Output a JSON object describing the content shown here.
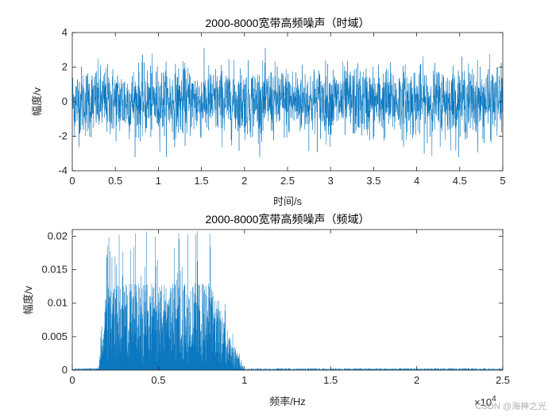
{
  "watermark": "CSDN @海神之光",
  "chart_data": [
    {
      "type": "line",
      "title": "2000-8000宽带高频噪声（时域）",
      "xlabel": "时间/s",
      "ylabel": "幅度/v",
      "xlim": [
        0,
        5
      ],
      "ylim": [
        -4,
        4
      ],
      "xticks": [
        0,
        0.5,
        1,
        1.5,
        2,
        2.5,
        3,
        3.5,
        4,
        4.5,
        5
      ],
      "xtick_labels": [
        "0",
        "0.5",
        "1",
        "1.5",
        "2",
        "2.5",
        "3",
        "3.5",
        "4",
        "4.5",
        "5"
      ],
      "yticks": [
        -4,
        -2,
        0,
        2,
        4
      ],
      "ytick_labels": [
        "-4",
        "-2",
        "0",
        "2",
        "4"
      ],
      "color": "#0072BD",
      "signal": {
        "kind": "noise",
        "mean": 0,
        "band_lower": -2.3,
        "band_upper": 2.3,
        "peak_min": -3.2,
        "peak_max": 3.1
      }
    },
    {
      "type": "line",
      "title": "2000-8000宽带高频噪声（频域）",
      "xlabel": "频率/Hz",
      "ylabel": "幅度/v",
      "xlim": [
        0,
        25000
      ],
      "ylim": [
        0,
        0.021
      ],
      "xticks": [
        0,
        5000,
        10000,
        15000,
        20000,
        25000
      ],
      "xtick_labels": [
        "0",
        "0.5",
        "1",
        "1.5",
        "2",
        "2.5"
      ],
      "x_exponent_label": "×10",
      "x_exponent_power": "4",
      "yticks": [
        0,
        0.005,
        0.01,
        0.015,
        0.02
      ],
      "ytick_labels": [
        "0",
        "0.005",
        "0.01",
        "0.015",
        "0.02"
      ],
      "color": "#0072BD",
      "spectrum": {
        "kind": "band-limited",
        "band_hz": [
          2000,
          8000
        ],
        "rolloff_hz": [
          1500,
          10000
        ],
        "typical_peak": 0.013,
        "max_peak": 0.021,
        "floor": 0.0005
      }
    }
  ]
}
